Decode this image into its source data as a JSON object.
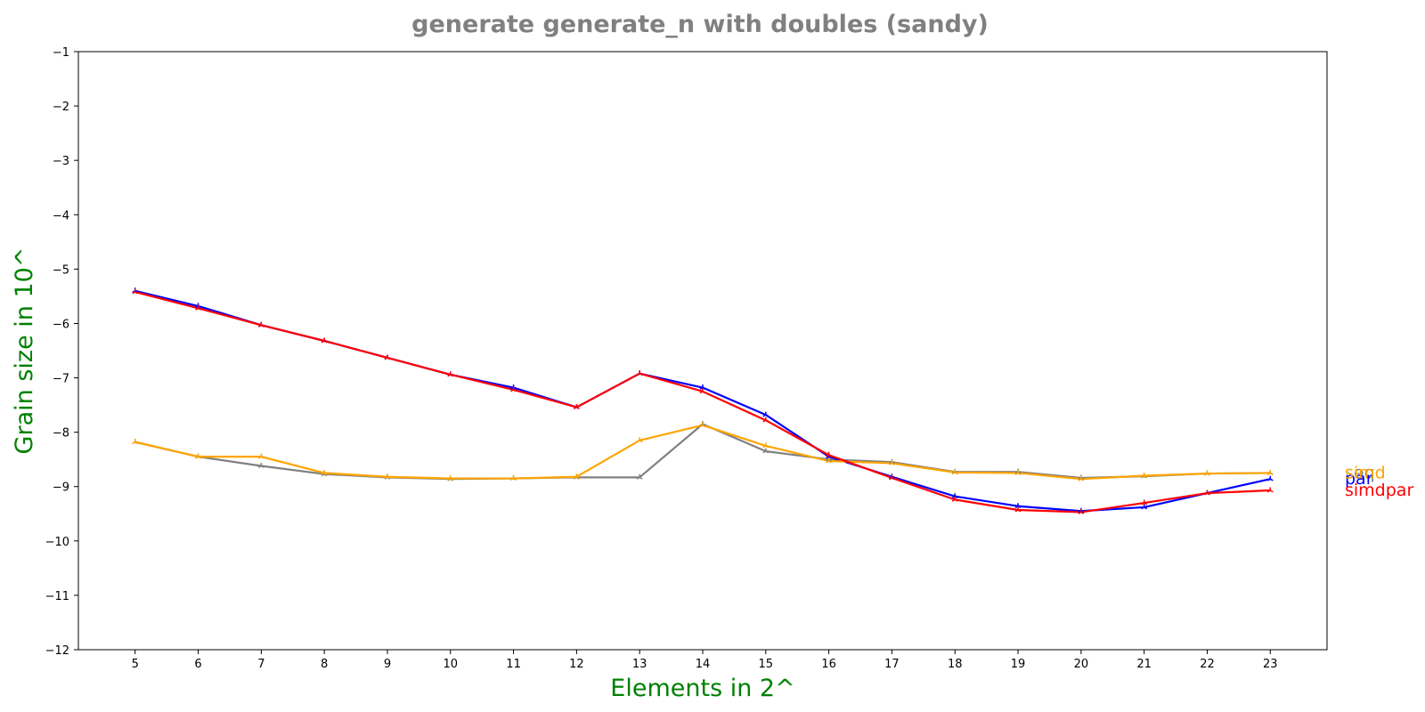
{
  "chart_data": {
    "type": "line",
    "title": "generate generate_n with doubles  (sandy)",
    "xlabel": "Elements in 2^",
    "ylabel": "Grain size in 10^",
    "x": [
      5,
      6,
      7,
      8,
      9,
      10,
      11,
      12,
      13,
      14,
      15,
      16,
      17,
      18,
      19,
      20,
      21,
      22,
      23
    ],
    "xlim": [
      4.1,
      23.9
    ],
    "ylim": [
      -12,
      -1
    ],
    "yticks": [
      -1,
      -2,
      -3,
      -4,
      -5,
      -6,
      -7,
      -8,
      -9,
      -10,
      -11,
      -12
    ],
    "grid": false,
    "legend": "end-of-line labels, right of plot",
    "series": [
      {
        "name": "seq",
        "color": "#808080",
        "values": [
          -8.18,
          -8.45,
          -8.62,
          -8.77,
          -8.83,
          -8.86,
          -8.85,
          -8.83,
          -8.83,
          -7.85,
          -8.35,
          -8.5,
          -8.55,
          -8.73,
          -8.73,
          -8.84,
          -8.81,
          -8.76,
          -8.75
        ]
      },
      {
        "name": "par",
        "color": "#0000ff",
        "values": [
          -5.4,
          -5.68,
          -6.03,
          -6.32,
          -6.63,
          -6.94,
          -7.18,
          -7.54,
          -6.92,
          -7.18,
          -7.68,
          -8.45,
          -8.82,
          -9.18,
          -9.36,
          -9.45,
          -9.38,
          -9.12,
          -8.86
        ]
      },
      {
        "name": "simd",
        "color": "#ffa500",
        "values": [
          -8.18,
          -8.45,
          -8.45,
          -8.75,
          -8.82,
          -8.85,
          -8.85,
          -8.82,
          -8.15,
          -7.87,
          -8.25,
          -8.53,
          -8.57,
          -8.74,
          -8.75,
          -8.86,
          -8.8,
          -8.76,
          -8.75
        ]
      },
      {
        "name": "simdpar",
        "color": "#ff0000",
        "values": [
          -5.42,
          -5.72,
          -6.03,
          -6.32,
          -6.63,
          -6.94,
          -7.22,
          -7.54,
          -6.92,
          -7.25,
          -7.78,
          -8.42,
          -8.84,
          -9.24,
          -9.43,
          -9.47,
          -9.3,
          -9.12,
          -9.07
        ]
      }
    ]
  }
}
